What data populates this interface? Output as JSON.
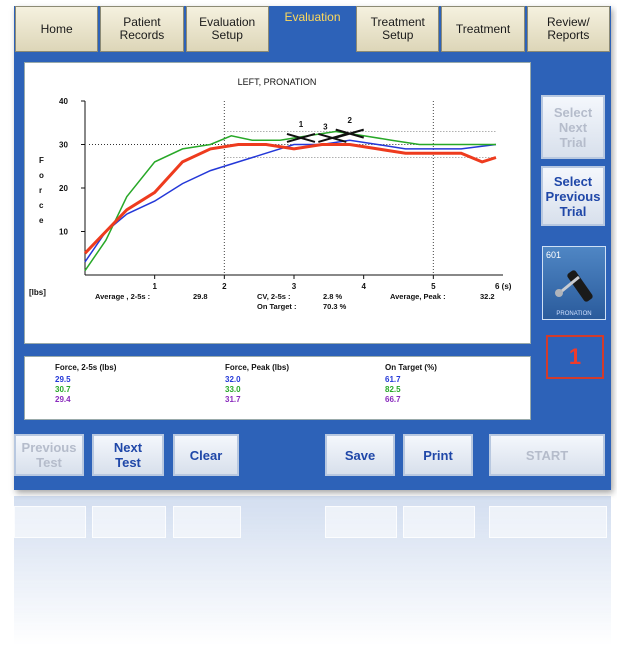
{
  "tabs": [
    {
      "label": "Home",
      "active": false
    },
    {
      "label": "Patient\nRecords",
      "active": false
    },
    {
      "label": "Evaluation\nSetup",
      "active": false
    },
    {
      "label": "Evaluation",
      "active": true
    },
    {
      "label": "Treatment\nSetup",
      "active": false
    },
    {
      "label": "Treatment",
      "active": false
    },
    {
      "label": "Review/\nReports",
      "active": false
    }
  ],
  "side": {
    "select_next": "Select\nNext\nTrial",
    "select_previous": "Select\nPrevious\nTrial",
    "trial_thumb_label": "601",
    "trial_thumb_caption": "PRONATION",
    "trial_number": "1"
  },
  "bottom": {
    "previous_test": "Previous\nTest",
    "next_test": "Next\nTest",
    "clear": "Clear",
    "save": "Save",
    "print": "Print",
    "start": "START"
  },
  "chart_data": {
    "type": "line",
    "title": "LEFT, PRONATION",
    "ylabel": "F\no\nr\nc\ne",
    "yunit": "[lbs]",
    "xunit": "6 (s)",
    "xlim": [
      0,
      6
    ],
    "ylim": [
      0,
      40
    ],
    "xticks": [
      "1",
      "2",
      "3",
      "4",
      "5"
    ],
    "yticks": [
      "10",
      "20",
      "30",
      "40"
    ],
    "target_lines": [
      27,
      30,
      33
    ],
    "peak_labels": [
      "1",
      "3",
      "2"
    ],
    "stats": {
      "avg_label": "Average , 2-5s  :",
      "avg_value": "29.8",
      "cv_label": "CV, 2-5s    :",
      "cv_value": "2.8  %",
      "ontarget_label": "On Target :",
      "ontarget_value": "70.3  %",
      "peak_label": "Average, Peak :",
      "peak_value": "32.2"
    },
    "series": [
      {
        "color": "#2438d8",
        "values": [
          [
            0,
            3
          ],
          [
            0.3,
            10
          ],
          [
            0.6,
            14
          ],
          [
            1,
            17
          ],
          [
            1.4,
            21
          ],
          [
            1.8,
            24
          ],
          [
            2.2,
            26
          ],
          [
            2.6,
            28
          ],
          [
            3,
            30
          ],
          [
            3.4,
            30
          ],
          [
            3.8,
            31
          ],
          [
            4.2,
            30
          ],
          [
            4.6,
            29
          ],
          [
            5,
            29
          ],
          [
            5.4,
            29
          ],
          [
            5.9,
            30
          ]
        ]
      },
      {
        "color": "#28a828",
        "values": [
          [
            0,
            1
          ],
          [
            0.3,
            8
          ],
          [
            0.6,
            18
          ],
          [
            1,
            26
          ],
          [
            1.4,
            29
          ],
          [
            1.8,
            30
          ],
          [
            2.1,
            32
          ],
          [
            2.4,
            31
          ],
          [
            2.8,
            31
          ],
          [
            3.2,
            32
          ],
          [
            3.6,
            33
          ],
          [
            4,
            32
          ],
          [
            4.4,
            31
          ],
          [
            4.8,
            30
          ],
          [
            5.2,
            30
          ],
          [
            5.6,
            30
          ],
          [
            5.9,
            30
          ]
        ]
      },
      {
        "color": "#ee3b1e",
        "values": [
          [
            0,
            5
          ],
          [
            0.3,
            10
          ],
          [
            0.6,
            15
          ],
          [
            1,
            19
          ],
          [
            1.4,
            26
          ],
          [
            1.8,
            29
          ],
          [
            2.2,
            30
          ],
          [
            2.6,
            30
          ],
          [
            3,
            29
          ],
          [
            3.4,
            30
          ],
          [
            3.8,
            30
          ],
          [
            4.2,
            29
          ],
          [
            4.6,
            28
          ],
          [
            5,
            28
          ],
          [
            5.4,
            28
          ],
          [
            5.7,
            26
          ],
          [
            5.9,
            27
          ]
        ]
      }
    ],
    "legend": {
      "headers": [
        "Force, 2-5s (lbs)",
        "Force, Peak (lbs)",
        "On Target (%)"
      ],
      "rows": [
        {
          "color": "#2438d8",
          "cells": [
            "29.5",
            "32.0",
            "61.7"
          ]
        },
        {
          "color": "#28a828",
          "cells": [
            "30.7",
            "33.0",
            "82.5"
          ]
        },
        {
          "color": "#8a2bbd",
          "cells": [
            "29.4",
            "31.7",
            "66.7"
          ]
        }
      ]
    }
  }
}
